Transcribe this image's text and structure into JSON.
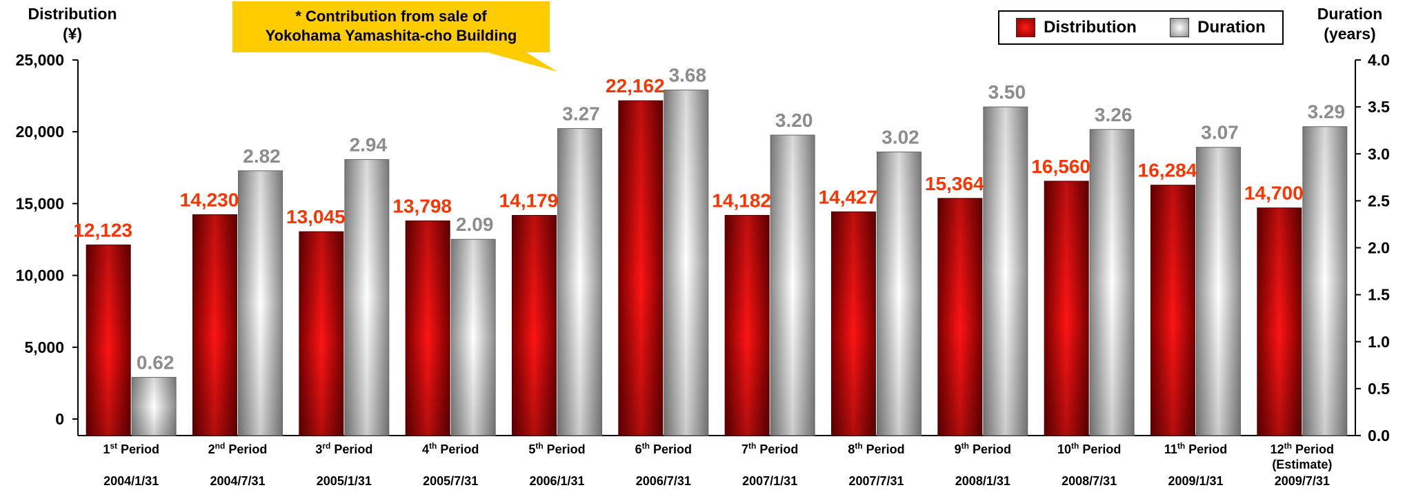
{
  "chart_data": {
    "type": "bar",
    "categories": [
      {
        "period": "1st Period",
        "num": "1",
        "sup": "st",
        "rest": " Period",
        "extra": "",
        "date": "2004/1/31"
      },
      {
        "period": "2nd Period",
        "num": "2",
        "sup": "nd",
        "rest": " Period",
        "extra": "",
        "date": "2004/7/31"
      },
      {
        "period": "3rd Period",
        "num": "3",
        "sup": "rd",
        "rest": " Period",
        "extra": "",
        "date": "2005/1/31"
      },
      {
        "period": "4th Period",
        "num": "4",
        "sup": "th",
        "rest": " Period",
        "extra": "",
        "date": "2005/7/31"
      },
      {
        "period": "5th Period",
        "num": "5",
        "sup": "th",
        "rest": " Period",
        "extra": "",
        "date": "2006/1/31"
      },
      {
        "period": "6th Period",
        "num": "6",
        "sup": "th",
        "rest": " Period",
        "extra": "",
        "date": "2006/7/31"
      },
      {
        "period": "7th Period",
        "num": "7",
        "sup": "th",
        "rest": " Period",
        "extra": "",
        "date": "2007/1/31"
      },
      {
        "period": "8th Period",
        "num": "8",
        "sup": "th",
        "rest": " Period",
        "extra": "",
        "date": "2007/7/31"
      },
      {
        "period": "9th Period",
        "num": "9",
        "sup": "th",
        "rest": " Period",
        "extra": "",
        "date": "2008/1/31"
      },
      {
        "period": "10th Period",
        "num": "10",
        "sup": "th",
        "rest": " Period",
        "extra": "",
        "date": "2008/7/31"
      },
      {
        "period": "11th Period",
        "num": "11",
        "sup": "th",
        "rest": " Period",
        "extra": "",
        "date": "2009/1/31"
      },
      {
        "period": "12th Period",
        "num": "12",
        "sup": "th",
        "rest": " Period",
        "extra": "(Estimate)",
        "date": "2009/7/31"
      }
    ],
    "series": [
      {
        "name": "Distribution",
        "axis": "left",
        "color": "#cc0000",
        "label_color": "#ff3300",
        "values": [
          12123,
          14230,
          13045,
          13798,
          14179,
          22162,
          14182,
          14427,
          15364,
          16560,
          16284,
          14700
        ],
        "labels": [
          "12,123",
          "14,230",
          "13,045",
          "13,798",
          "14,179",
          "22,162",
          "14,182",
          "14,427",
          "15,364",
          "16,560",
          "16,284",
          "14,700"
        ]
      },
      {
        "name": "Duration",
        "axis": "right",
        "color": "#a6a6a6",
        "label_color": "#8c8c8c",
        "values": [
          0.62,
          2.82,
          2.94,
          2.09,
          3.27,
          3.68,
          3.2,
          3.02,
          3.5,
          3.26,
          3.07,
          3.29
        ],
        "labels": [
          "0.62",
          "2.82",
          "2.94",
          "2.09",
          "3.27",
          "3.68",
          "3.20",
          "3.02",
          "3.50",
          "3.26",
          "3.07",
          "3.29"
        ]
      }
    ],
    "y_left": {
      "title_line1": "Distribution",
      "title_line2": "(¥)",
      "ylim": [
        0,
        25000
      ],
      "ticks": [
        0,
        5000,
        10000,
        15000,
        20000,
        25000
      ],
      "tick_labels": [
        "0",
        "5,000",
        "10,000",
        "15,000",
        "20,000",
        "25,000"
      ]
    },
    "y_right": {
      "title_line1": "Duration",
      "title_line2": "(years)",
      "ylim": [
        0,
        4
      ],
      "ticks": [
        0,
        0.5,
        1,
        1.5,
        2,
        2.5,
        3,
        3.5,
        4
      ],
      "tick_labels": [
        "0.0",
        "0.5",
        "1.0",
        "1.5",
        "2.0",
        "2.5",
        "3.0",
        "3.5",
        "4.0"
      ]
    },
    "legend": {
      "position": "top-right",
      "items": [
        "Distribution",
        "Duration"
      ]
    },
    "annotation": {
      "line1": "* Contribution from sale of",
      "line2": "Yokohama Yamashita-cho Building",
      "target_index": 5,
      "color": "#ffcc00"
    },
    "grid": false
  }
}
